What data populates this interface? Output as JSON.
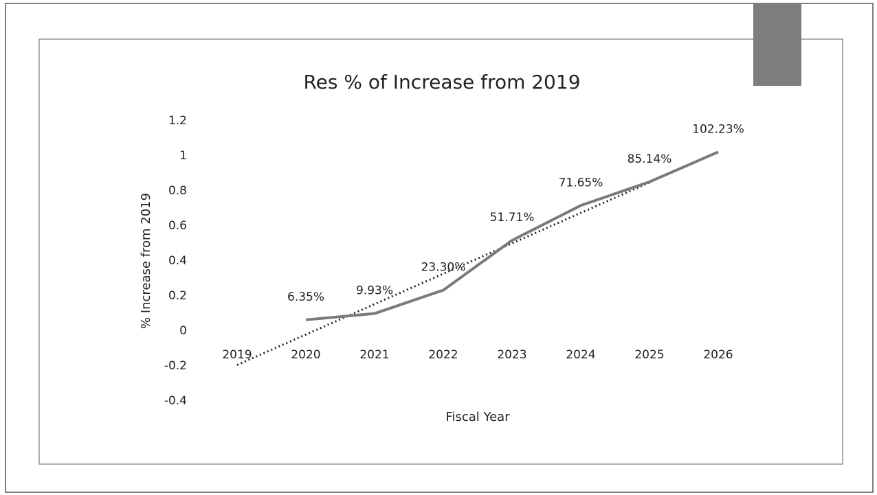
{
  "chart_data": {
    "type": "line",
    "title": "Res % of Increase from 2019",
    "x_label": "Fiscal Year",
    "y_label": "% Increase from 2019",
    "categories": [
      "2019",
      "2020",
      "2021",
      "2022",
      "2023",
      "2024",
      "2025",
      "2026"
    ],
    "values": [
      null,
      0.0635,
      0.0993,
      0.233,
      0.5171,
      0.7165,
      0.8514,
      1.0223
    ],
    "value_labels": [
      null,
      "6.35%",
      "9.93%",
      "23.30%",
      "51.71%",
      "71.65%",
      "85.14%",
      "102.23%"
    ],
    "color": "#7a7a7a",
    "trendline": "linear",
    "ylim": [
      -0.4,
      1.2
    ],
    "yticks": [
      1.2,
      1,
      0.8,
      0.6,
      0.4,
      0.2,
      0,
      -0.2,
      -0.4
    ],
    "grid": false
  }
}
